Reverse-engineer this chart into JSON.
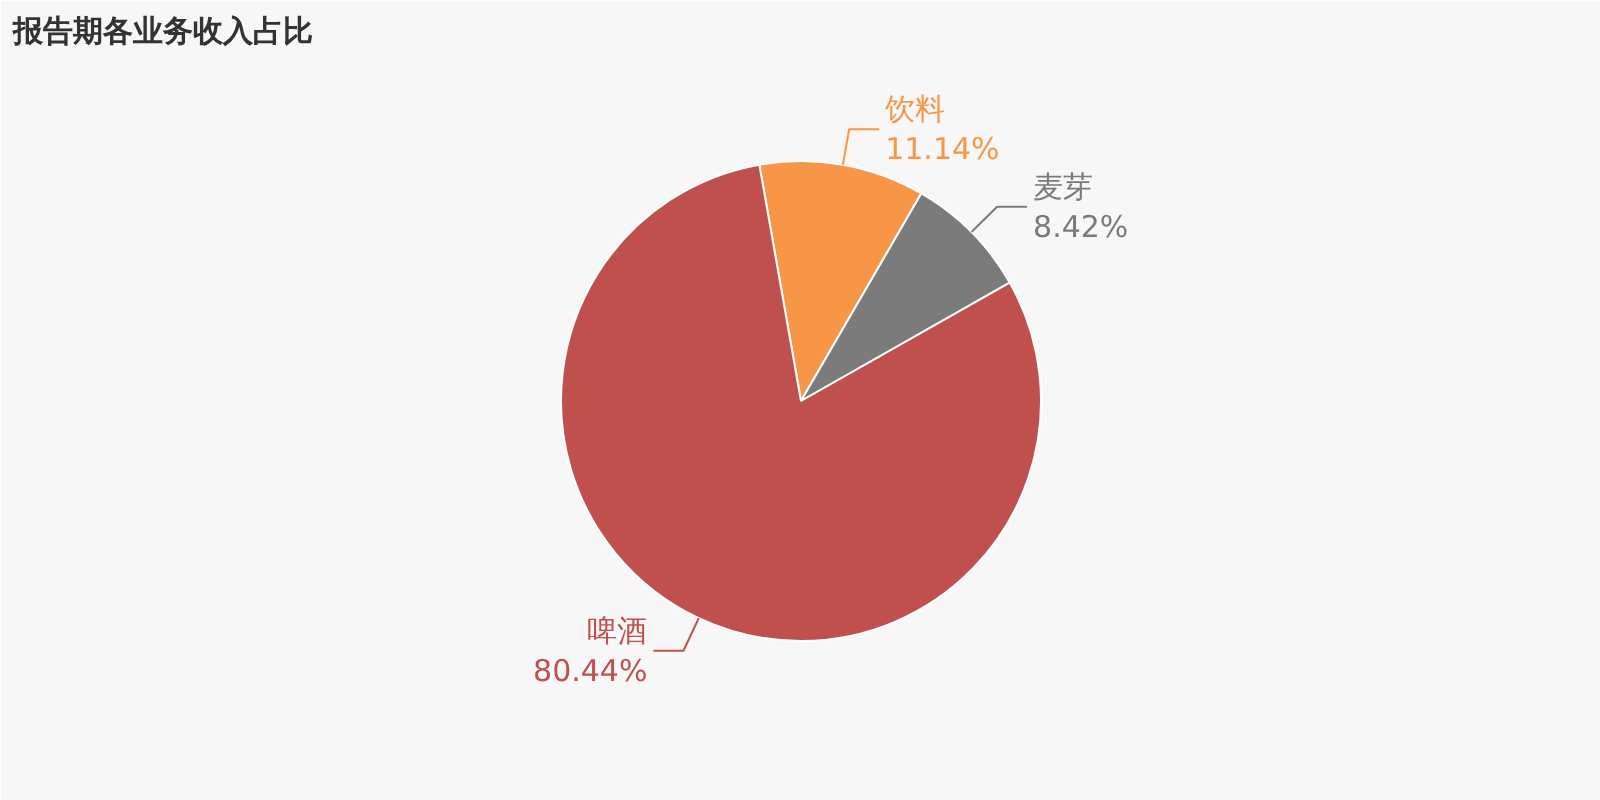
{
  "chart_data": {
    "type": "pie",
    "title": "报告期各业务收入占比",
    "categories": [
      "饮料",
      "麦芽",
      "啤酒"
    ],
    "values": [
      11.14,
      8.42,
      80.44
    ],
    "colors": [
      "#f79646",
      "#7b7b7b",
      "#c0504d"
    ],
    "value_labels": [
      "11.14%",
      "8.42%",
      "80.44%"
    ]
  }
}
